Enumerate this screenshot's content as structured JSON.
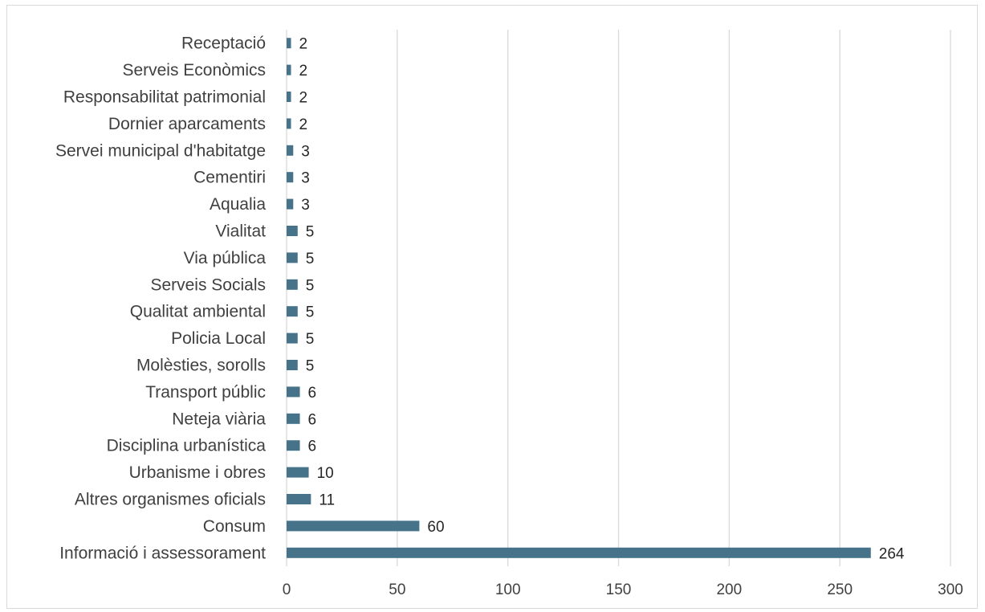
{
  "chart_data": {
    "type": "bar",
    "orientation": "horizontal",
    "categories": [
      "Receptació",
      "Serveis Econòmics",
      "Responsabilitat patrimonial",
      "Dornier aparcaments",
      "Servei municipal d'habitatge",
      "Cementiri",
      "Aqualia",
      "Vialitat",
      "Via pública",
      "Serveis Socials",
      "Qualitat ambiental",
      "Policia Local",
      "Molèsties, sorolls",
      "Transport públic",
      "Neteja viària",
      "Disciplina urbanística",
      "Urbanisme i obres",
      "Altres organismes oficials",
      "Consum",
      "Informació i assessorament"
    ],
    "values": [
      2,
      2,
      2,
      2,
      3,
      3,
      3,
      5,
      5,
      5,
      5,
      5,
      5,
      6,
      6,
      6,
      10,
      11,
      60,
      264
    ],
    "data_labels": [
      "2",
      "2",
      "2",
      "2",
      "3",
      "3",
      "3",
      "5",
      "5",
      "5",
      "5",
      "5",
      "5",
      "6",
      "6",
      "6",
      "10",
      "11",
      "60",
      "264"
    ],
    "xticks": [
      "0",
      "50",
      "100",
      "150",
      "200",
      "250",
      "300"
    ],
    "xlim": [
      0,
      300
    ],
    "grid": "vertical",
    "legend": "none",
    "title": "",
    "xlabel": "",
    "ylabel": "",
    "colors": {
      "bar": "#46738a",
      "grid": "#d9d9d9",
      "text": "#404040"
    }
  }
}
